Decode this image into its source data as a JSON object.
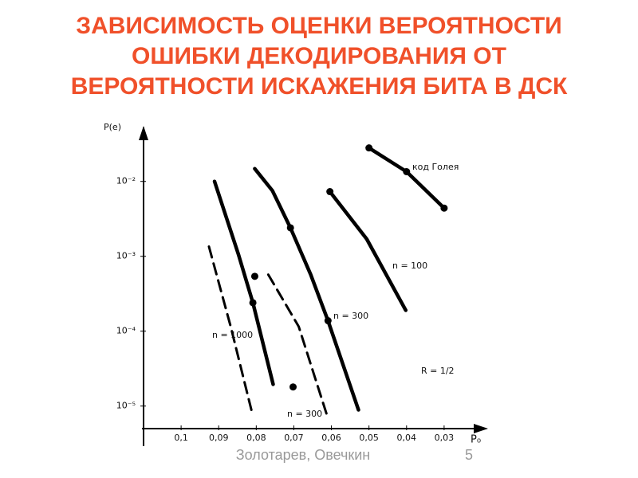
{
  "header": {
    "title": [
      "ЗАВИСИМОСТЬ ОЦЕНКИ ВЕРОЯТНОСТИ",
      "ОШИБКИ ДЕКОДИРОВАНИЯ ОТ",
      "ВЕРОЯТНОСТИ ИСКАЖЕНИЯ БИТА В ДСК"
    ]
  },
  "footer": {
    "author": "Золотарев, Овечкин",
    "page": "5"
  },
  "chart_data": {
    "type": "line",
    "x_label": "P₀",
    "y_label": "P(e)",
    "log_y": true,
    "xlim": [
      0.11,
      0.02
    ],
    "ylim": [
      5e-06,
      0.05
    ],
    "xticks": [
      {
        "value": 0.1,
        "label": "0,1"
      },
      {
        "value": 0.09,
        "label": "0,09"
      },
      {
        "value": 0.08,
        "label": "0,08"
      },
      {
        "value": 0.07,
        "label": "0,07"
      },
      {
        "value": 0.06,
        "label": "0,06"
      },
      {
        "value": 0.05,
        "label": "0,05"
      },
      {
        "value": 0.04,
        "label": "0,04"
      },
      {
        "value": 0.03,
        "label": "0,03"
      }
    ],
    "yticks": [
      {
        "value": 0.01,
        "label": "10⁻²"
      },
      {
        "value": 0.001,
        "label": "10⁻³"
      },
      {
        "value": 0.0001,
        "label": "10⁻⁴"
      },
      {
        "value": 1e-05,
        "label": "10⁻⁵"
      }
    ],
    "annotations": [
      "R = 1/2"
    ],
    "series": [
      {
        "name": "код Голея",
        "style": "solid",
        "color": "#000000",
        "x": [
          0.05,
          0.04,
          0.03
        ],
        "values": [
          0.028,
          0.0135,
          0.0044
        ]
      },
      {
        "name": "n = 100",
        "style": "solid",
        "color": "#000000",
        "x": [
          0.0604,
          0.0506,
          0.0402
        ],
        "values": [
          0.0073,
          0.0017,
          0.00019
        ]
      },
      {
        "name": "n = 300",
        "style": "solid",
        "color": "#000000",
        "x": [
          0.0804,
          0.0757,
          0.0709,
          0.0655,
          0.0609,
          0.0528
        ],
        "values": [
          0.0148,
          0.0075,
          0.0024,
          0.00057,
          0.000138,
          8.9e-06
        ]
      },
      {
        "style": "solid",
        "color": "#000000",
        "x": [
          0.0911,
          0.0847,
          0.0809,
          0.0755
        ],
        "values": [
          0.01,
          0.00104,
          0.00024,
          1.95e-05
        ]
      },
      {
        "name": "n = 1000",
        "style": "dashed",
        "color": "#000000",
        "x": [
          0.0926,
          0.0868,
          0.0813
        ],
        "values": [
          0.00135,
          0.000115,
          8.9e-06
        ]
      },
      {
        "name": "n = 300",
        "style": "dashed",
        "color": "#000000",
        "x": [
          0.0768,
          0.0687,
          0.0613
        ],
        "values": [
          0.00057,
          0.000115,
          7.9e-06
        ]
      }
    ],
    "points": {
      "color": "#000000",
      "x": [
        0.05,
        0.04,
        0.03,
        0.0604,
        0.0709,
        0.0609,
        0.0809,
        0.0804,
        0.0702
      ],
      "values": [
        0.028,
        0.0135,
        0.0044,
        0.0073,
        0.0024,
        0.000138,
        0.00024,
        0.00054,
        1.8e-05
      ]
    }
  }
}
